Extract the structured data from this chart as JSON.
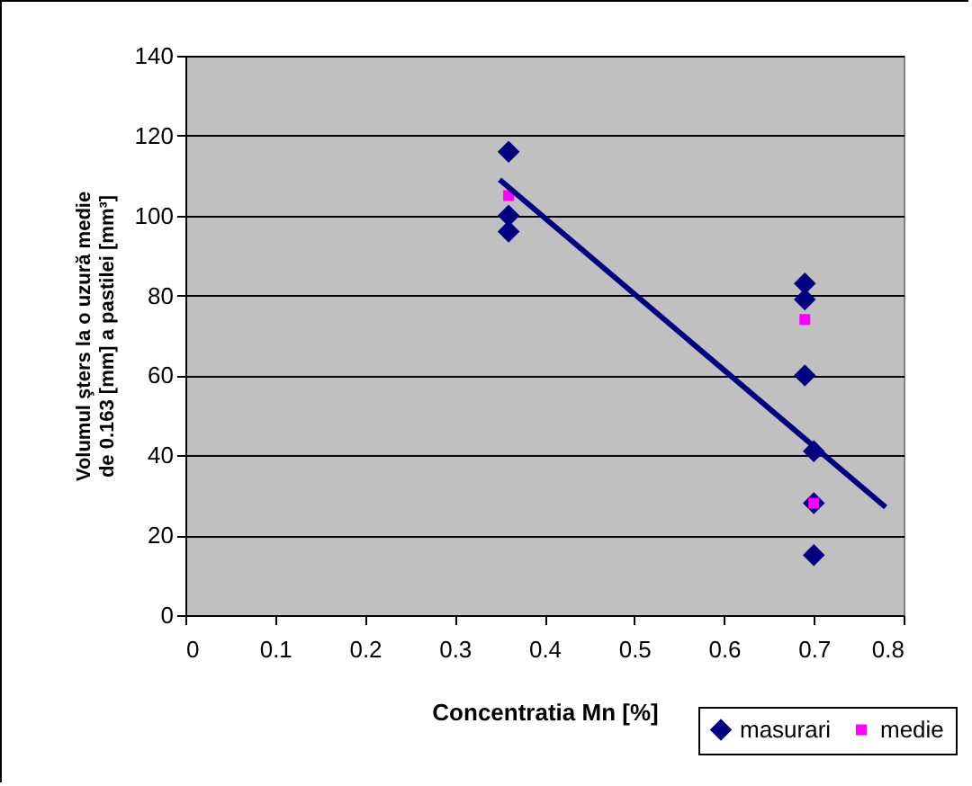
{
  "chart_data": {
    "type": "scatter",
    "xlabel": "Concentratia Mn [%]",
    "ylabel": "Volumul şters la o uzură medie de 0.163 [mm] a pastilei [mm³]",
    "xlim": [
      0,
      0.8
    ],
    "xticks": [
      0,
      0.1,
      0.2,
      0.3,
      0.4,
      0.5,
      0.6,
      0.7,
      0.8
    ],
    "ylim": [
      0,
      140
    ],
    "yticks": [
      0,
      20,
      40,
      60,
      80,
      100,
      120,
      140
    ],
    "grid": "y",
    "legend": "bottom right",
    "series": [
      {
        "name": "masurari",
        "color": "#000080",
        "marker": "diamond",
        "x": [
          0.36,
          0.36,
          0.36,
          0.69,
          0.69,
          0.69,
          0.7,
          0.7,
          0.7
        ],
        "values": [
          116,
          100,
          96,
          83,
          79,
          60,
          41,
          28,
          15
        ]
      },
      {
        "name": "medie",
        "color": "#ff00ff",
        "marker": "square",
        "x": [
          0.36,
          0.69,
          0.7
        ],
        "values": [
          105,
          74,
          28
        ]
      },
      {
        "type": "line",
        "color": "#000080",
        "x": [
          0.35,
          0.78
        ],
        "values": [
          109,
          27
        ]
      }
    ]
  }
}
